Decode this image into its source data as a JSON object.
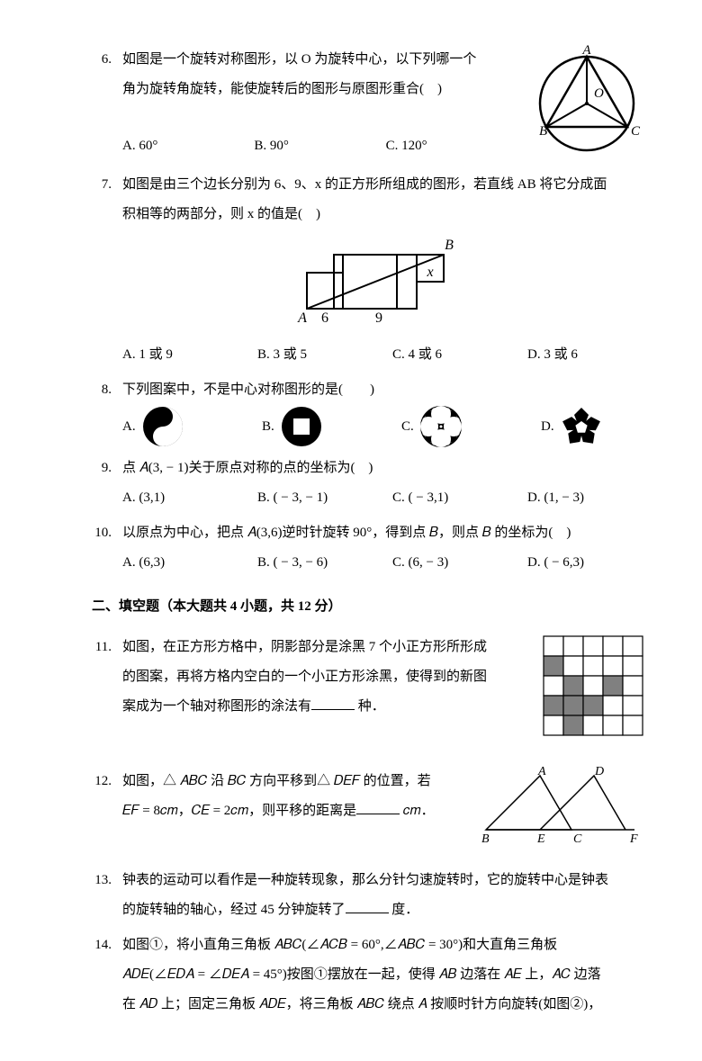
{
  "q6": {
    "num": "6.",
    "text1": "如图是一个旋转对称图形，以 O 为旋转中心，以下列哪一个",
    "text2": "角为旋转角旋转，能使旋转后的图形与原图形重合(　)",
    "opts": [
      "A. 60°",
      "B. 90°",
      "C. 120°"
    ],
    "fig": {
      "A": "A",
      "B": "B",
      "C": "C",
      "O": "O",
      "stroke": "#000"
    }
  },
  "q7": {
    "num": "7.",
    "text1": "如图是由三个边长分别为 6、9、x 的正方形所组成的图形，若直线 AB 将它分成面",
    "text2": "积相等的两部分，则 x 的值是(　)",
    "opts": [
      "A. 1 或 9",
      "B. 3 或 5",
      "C. 4 或 6",
      "D. 3 或 6"
    ],
    "fig": {
      "A": "A",
      "B": "B",
      "six": "6",
      "nine": "9",
      "x": "x"
    }
  },
  "q8": {
    "num": "8.",
    "text": "下列图案中，不是中心对称图形的是(　　)",
    "opts": [
      "A.",
      "B.",
      "C.",
      "D."
    ]
  },
  "q9": {
    "num": "9.",
    "text": "点 𝐴(3, − 1)关于原点对称的点的坐标为(　)",
    "opts": [
      "A. (3,1)",
      "B. ( − 3, − 1)",
      "C. ( − 3,1)",
      "D. (1, − 3)"
    ]
  },
  "q10": {
    "num": "10.",
    "text": "以原点为中心，把点 𝐴(3,6)逆时针旋转 90°，得到点 𝐵，则点 𝐵 的坐标为(　)",
    "opts": [
      "A. (6,3)",
      "B. ( − 3, − 6)",
      "C. (6, − 3)",
      "D. ( − 6,3)"
    ]
  },
  "section2": "二、填空题（本大题共 4 小题，共 12 分）",
  "q11": {
    "num": "11.",
    "text1": "如图，在正方形方格中，阴影部分是涂黑 7 个小正方形所形成",
    "text2": "的图案，再将方格内空白的一个小正方形涂黑，使得到的新图",
    "text3": "案成为一个轴对称图形的涂法有",
    "text3b": " 种．",
    "grid": {
      "white": "#ffffff",
      "black": "#000000",
      "gray": "#808080",
      "cells": [
        [
          "w",
          "w",
          "w",
          "w",
          "w"
        ],
        [
          "g",
          "w",
          "w",
          "w",
          "w"
        ],
        [
          "w",
          "g",
          "w",
          "g",
          "w"
        ],
        [
          "g",
          "g",
          "g",
          "w",
          "w"
        ],
        [
          "w",
          "g",
          "w",
          "w",
          "w"
        ]
      ]
    }
  },
  "q12": {
    "num": "12.",
    "text1": "如图，△ 𝐴𝐵𝐶 沿 𝐵𝐶 方向平移到△ 𝐷𝐸𝐹 的位置，若",
    "text2a": "𝐸𝐹 = 8𝑐𝑚，𝐶𝐸 = 2𝑐𝑚，则平移的距离是",
    "text2b": " 𝑐𝑚．",
    "fig": {
      "A": "A",
      "B": "B",
      "C": "C",
      "D": "D",
      "E": "E",
      "F": "F"
    }
  },
  "q13": {
    "num": "13.",
    "text1": "钟表的运动可以看作是一种旋转现象，那么分针匀速旋转时，它的旋转中心是钟表",
    "text2a": "的旋转轴的轴心，经过 45 分钟旋转了",
    "text2b": " 度．"
  },
  "q14": {
    "num": "14.",
    "text1": "如图①，将小直角三角板 𝐴𝐵𝐶(∠𝐴𝐶𝐵 = 60°,∠𝐴𝐵𝐶 = 30°)和大直角三角板",
    "text2": "𝐴𝐷𝐸(∠𝐸𝐷𝐴 = ∠𝐷𝐸𝐴 = 45°)按图①摆放在一起，使得 𝐴𝐵 边落在 𝐴𝐸 上，𝐴𝐶 边落",
    "text3": "在 𝐴𝐷 上；固定三角板 𝐴𝐷𝐸，将三角板 𝐴𝐵𝐶 绕点 𝐴 按顺时针方向旋转(如图②)，"
  }
}
